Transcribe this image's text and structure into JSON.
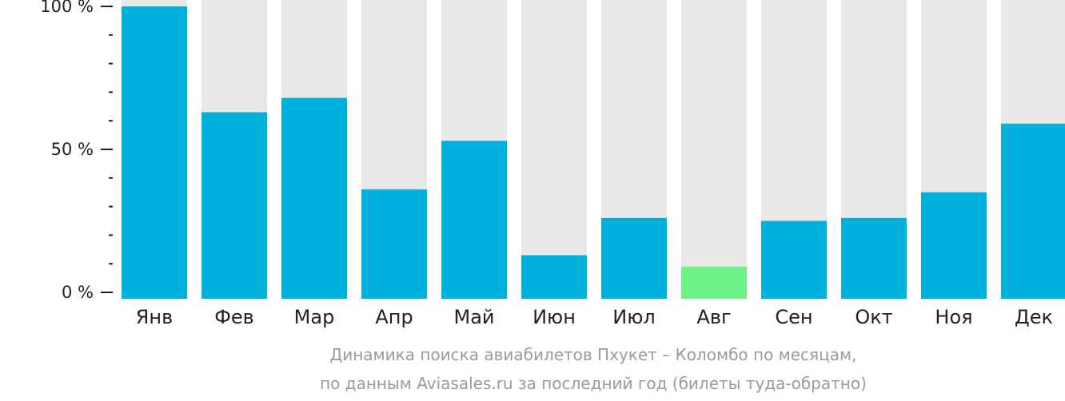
{
  "chart_data": {
    "type": "bar",
    "categories": [
      "Янв",
      "Фев",
      "Мар",
      "Апр",
      "Май",
      "Июн",
      "Июл",
      "Авг",
      "Сен",
      "Окт",
      "Ноя",
      "Дек"
    ],
    "values": [
      100,
      63,
      68,
      36,
      53,
      13,
      26,
      9,
      25,
      26,
      35,
      59
    ],
    "ylim": [
      0,
      100
    ],
    "yticks": [
      {
        "value": 100,
        "label": "100 %"
      },
      {
        "value": 50,
        "label": "50 %"
      },
      {
        "value": 0,
        "label": "0 %"
      }
    ],
    "minor_tick_step": 10,
    "highlight_category": "Авг",
    "colors": {
      "bar": "#00b0dd",
      "highlight": "#6cf287",
      "background_column": "#e8e8e8",
      "axis": "#222222",
      "caption": "#9a9a9a"
    },
    "caption": [
      "Динамика поиска авиабилетов Пхукет – Коломбо по месяцам,",
      "по данным Aviasales.ru за последний год (билеты туда-обратно)"
    ],
    "grid": false,
    "legend": "none"
  }
}
